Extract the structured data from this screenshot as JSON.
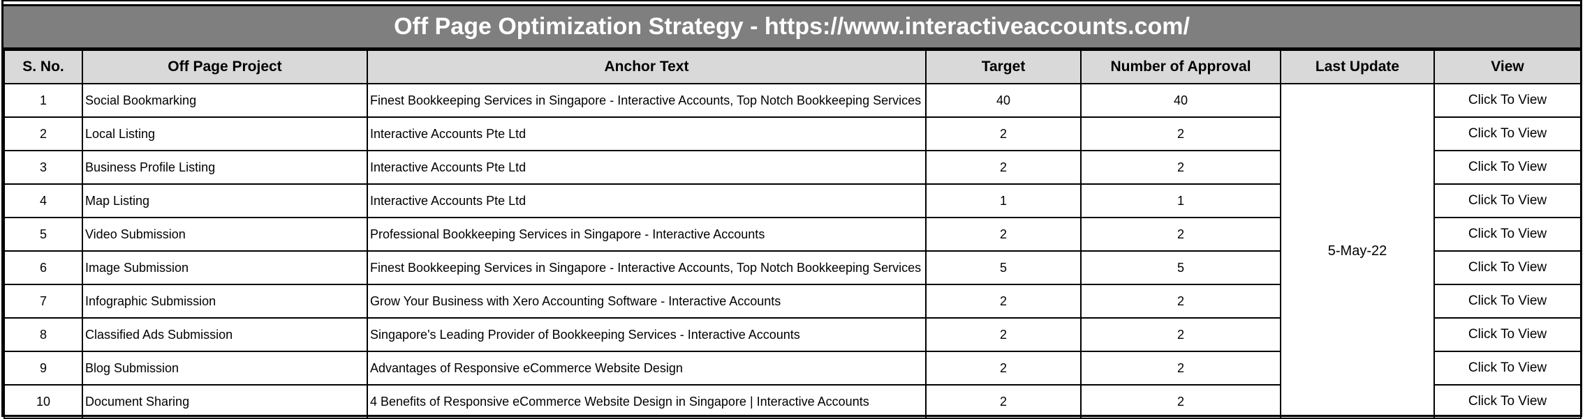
{
  "title": "Off Page Optimization Strategy - https://www.interactiveaccounts.com/",
  "columns": [
    "S. No.",
    "Off Page Project",
    "Anchor Text",
    "Target",
    "Number of Approval",
    "Last Update",
    "View"
  ],
  "last_update": "5-May-22",
  "rows": [
    {
      "sno": "1",
      "project": "Social Bookmarking",
      "anchor": "Finest Bookkeeping Services in Singapore - Interactive Accounts, Top Notch Bookkeeping Services in",
      "target": "40",
      "approval": "40",
      "view": "Click To View"
    },
    {
      "sno": "2",
      "project": "Local Listing",
      "anchor": "Interactive Accounts Pte Ltd",
      "target": "2",
      "approval": "2",
      "view": "Click To View"
    },
    {
      "sno": "3",
      "project": "Business Profile Listing",
      "anchor": "Interactive Accounts Pte Ltd",
      "target": "2",
      "approval": "2",
      "view": "Click To View"
    },
    {
      "sno": "4",
      "project": "Map Listing",
      "anchor": "Interactive Accounts Pte Ltd",
      "target": "1",
      "approval": "1",
      "view": "Click To View"
    },
    {
      "sno": "5",
      "project": "Video Submission",
      "anchor": "Professional Bookkeeping Services in Singapore - Interactive Accounts",
      "target": "2",
      "approval": "2",
      "view": "Click To View"
    },
    {
      "sno": "6",
      "project": "Image Submission",
      "anchor": "Finest Bookkeeping Services in Singapore - Interactive Accounts, Top Notch Bookkeeping Services in",
      "target": "5",
      "approval": "5",
      "view": "Click To View"
    },
    {
      "sno": "7",
      "project": "Infographic Submission",
      "anchor": "Grow Your Business with Xero Accounting Software - Interactive Accounts",
      "target": "2",
      "approval": "2",
      "view": "Click To View"
    },
    {
      "sno": "8",
      "project": "Classified Ads Submission",
      "anchor": "Singapore's Leading Provider of Bookkeeping Services - Interactive Accounts",
      "target": "2",
      "approval": "2",
      "view": "Click To View"
    },
    {
      "sno": "9",
      "project": "Blog Submission",
      "anchor": "Advantages of Responsive eCommerce Website Design",
      "target": "2",
      "approval": "2",
      "view": "Click To View"
    },
    {
      "sno": "10",
      "project": "Document Sharing",
      "anchor": "4 Benefits of Responsive eCommerce Website Design in Singapore | Interactive Accounts",
      "target": "2",
      "approval": "2",
      "view": "Click To View"
    }
  ]
}
